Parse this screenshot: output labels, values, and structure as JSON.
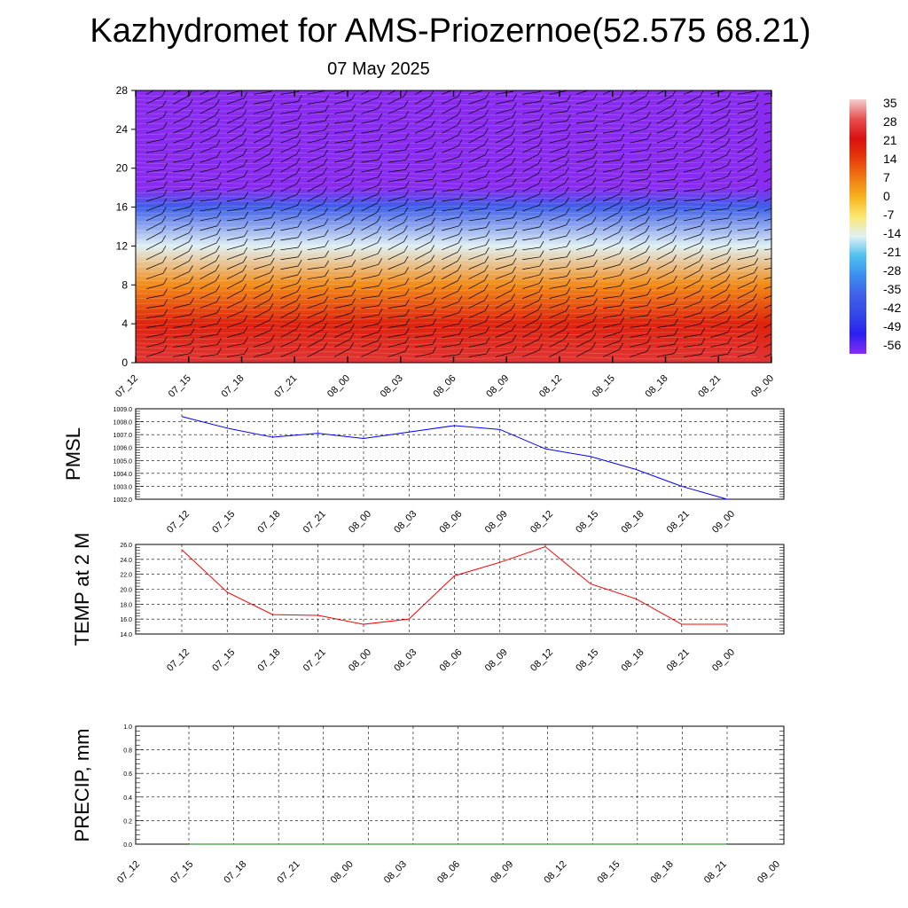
{
  "header": {
    "title": "Kazhydromet for AMS-Priozernoe(52.575 68.21)",
    "date": "07 May 2025"
  },
  "time_labels": [
    "07_12",
    "07_15",
    "07_18",
    "07_21",
    "08_00",
    "08_03",
    "08_06",
    "08_09",
    "08_12",
    "08_15",
    "08_18",
    "08_21",
    "09_00"
  ],
  "colorbar": {
    "labels": [
      "35",
      "28",
      "21",
      "14",
      "7",
      "0",
      "-7",
      "-14",
      "-21",
      "-28",
      "-35",
      "-42",
      "-49",
      "-56"
    ],
    "colors": [
      "#f4d0d0",
      "#e85050",
      "#d81010",
      "#e63a0a",
      "#f07a14",
      "#f6b41e",
      "#fde874",
      "#e0f0f4",
      "#50c0f0",
      "#3a8ef0",
      "#4060e8",
      "#3448e6",
      "#2a20f0",
      "#8a2cf0"
    ]
  },
  "chart_data": [
    {
      "type": "heatmap",
      "title": "Kazhydromet for AMS-Priozernoe(52.575 68.21)",
      "subtitle": "07 May 2025",
      "x": [
        "07_12",
        "07_15",
        "07_18",
        "07_21",
        "08_00",
        "08_03",
        "08_06",
        "08_09",
        "08_12",
        "08_15",
        "08_18",
        "08_21",
        "09_00"
      ],
      "ylim": [
        0,
        28
      ],
      "yticks": [
        "0",
        "4",
        "8",
        "12",
        "16",
        "20",
        "24",
        "28"
      ],
      "vertical_profile_temp": [
        {
          "level": 0,
          "value": 25
        },
        {
          "level": 4,
          "value": 18
        },
        {
          "level": 8,
          "value": 5
        },
        {
          "level": 12,
          "value": -14
        },
        {
          "level": 16,
          "value": -35
        },
        {
          "level": 18,
          "value": -56
        },
        {
          "level": 22,
          "value": -56
        },
        {
          "level": 28,
          "value": -60
        }
      ],
      "colorbar_range": [
        -56,
        35
      ],
      "overlay": "wind barbs"
    },
    {
      "type": "line",
      "ylabel": "PMSL",
      "x": [
        "07_12",
        "07_15",
        "07_18",
        "07_21",
        "08_00",
        "08_03",
        "08_06",
        "08_09",
        "08_12",
        "08_15",
        "08_18",
        "08_21",
        "09_00"
      ],
      "values": [
        1008.4,
        1007.5,
        1006.8,
        1007.1,
        1006.7,
        1007.2,
        1007.7,
        1007.4,
        1005.9,
        1005.3,
        1004.3,
        1003.0,
        1002.0
      ],
      "ylim": [
        1002.0,
        1009.0
      ],
      "yticks": [
        "1002.0",
        "1003.0",
        "1004.0",
        "1005.0",
        "1006.0",
        "1007.0",
        "1008.0",
        "1009.0"
      ],
      "color": "#0000ff",
      "grid": true
    },
    {
      "type": "line",
      "ylabel": "TEMP at 2 M",
      "x": [
        "07_12",
        "07_15",
        "07_18",
        "07_21",
        "08_00",
        "08_03",
        "08_06",
        "08_09",
        "08_12",
        "08_15",
        "08_18",
        "08_21",
        "09_00"
      ],
      "values": [
        25.3,
        19.6,
        16.6,
        16.5,
        15.3,
        16.0,
        21.8,
        23.6,
        25.7,
        20.7,
        18.7,
        15.3,
        15.3
      ],
      "ylim": [
        14.0,
        26.0
      ],
      "yticks": [
        "14.0",
        "16.0",
        "18.0",
        "20.0",
        "22.0",
        "24.0",
        "26.0"
      ],
      "color": "#ff0000",
      "grid": true
    },
    {
      "type": "line",
      "ylabel": "PRECIP, mm",
      "x": [
        "07_12",
        "07_15",
        "07_18",
        "07_21",
        "08_00",
        "08_03",
        "08_06",
        "08_09",
        "08_12",
        "08_15",
        "08_18",
        "08_21",
        "09_00"
      ],
      "values": [
        0,
        0,
        0,
        0,
        0,
        0,
        0,
        0,
        0,
        0,
        0,
        0,
        0
      ],
      "ylim": [
        0.0,
        1.0
      ],
      "yticks": [
        "0.0",
        "0.2",
        "0.4",
        "0.6",
        "0.8",
        "1.0"
      ],
      "color": "#008000",
      "grid": true
    }
  ]
}
